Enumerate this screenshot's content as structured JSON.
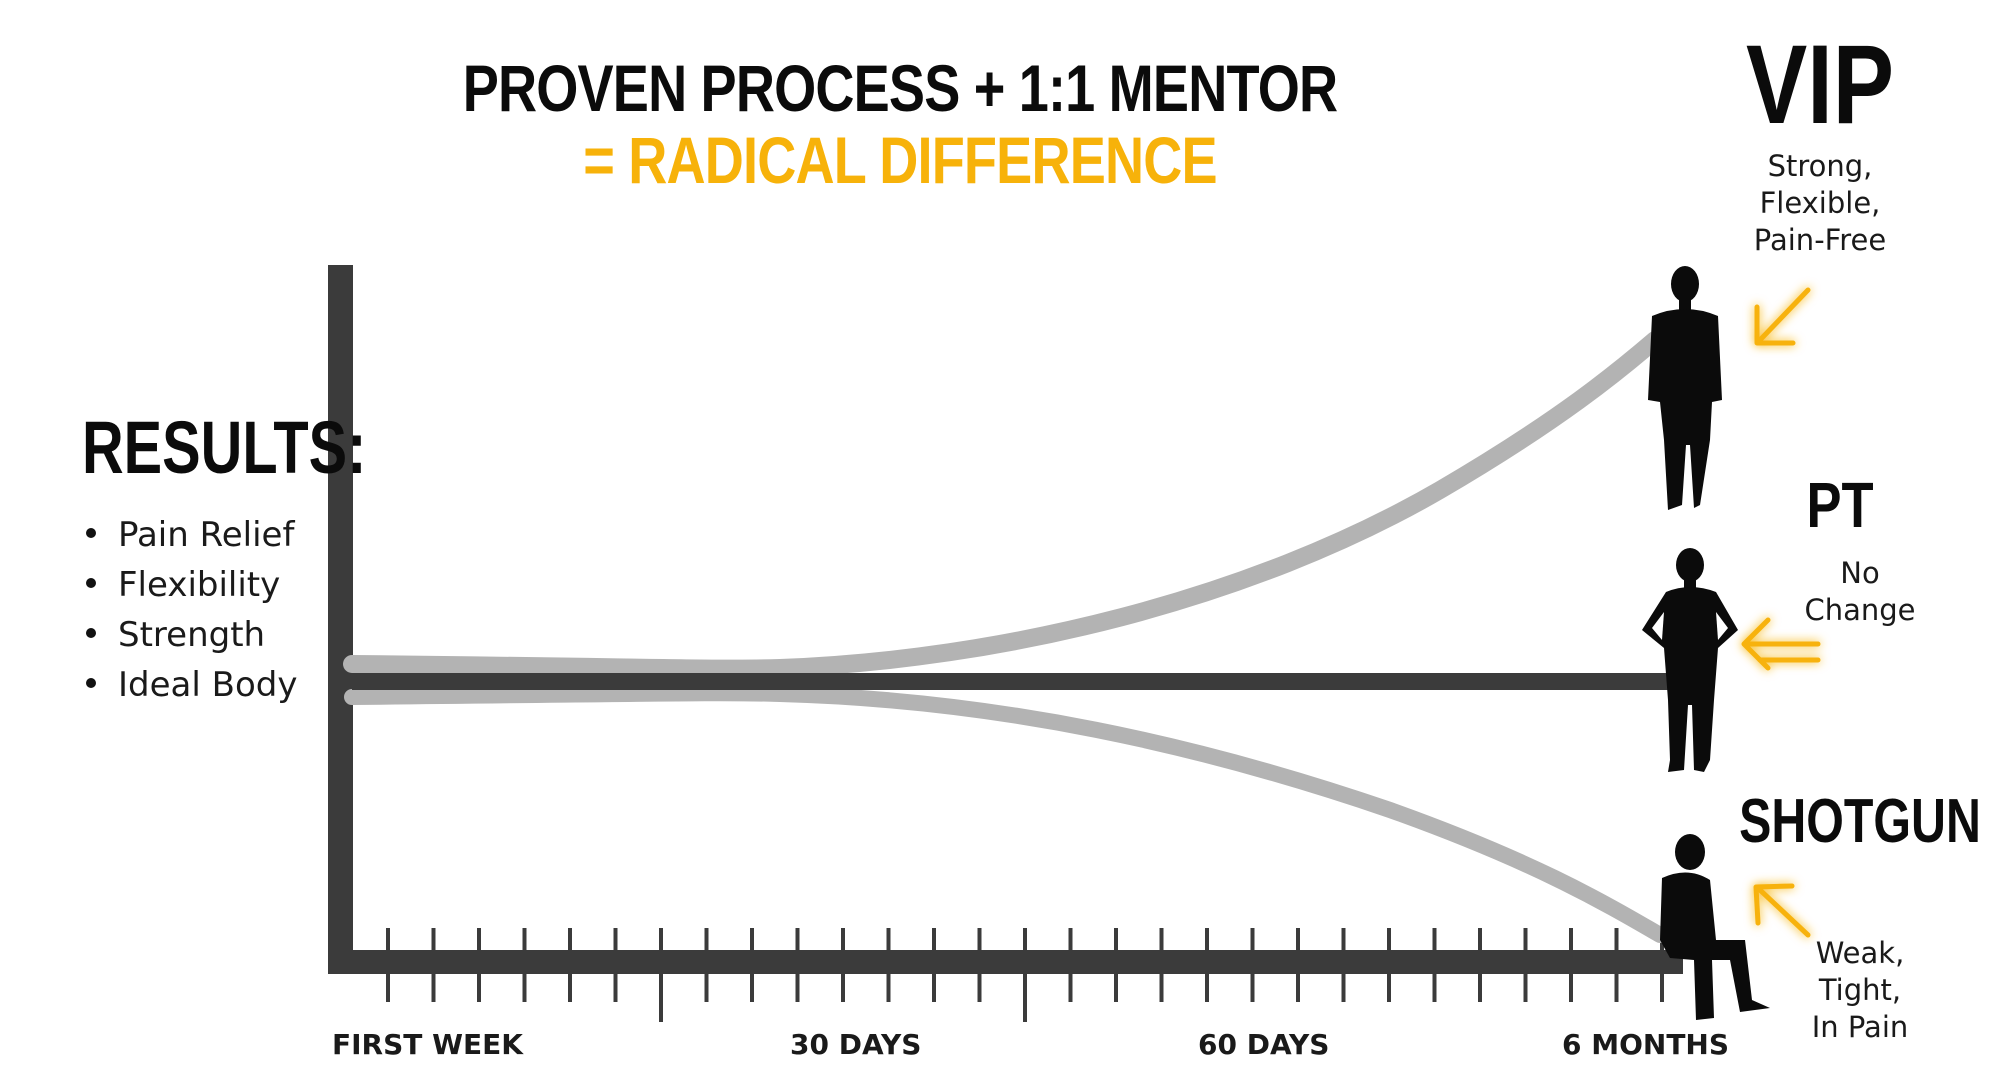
{
  "title": {
    "line1": "PROVEN PROCESS + 1:1 MENTOR",
    "line2": "= RADICAL DIFFERENCE"
  },
  "results": {
    "heading": "RESULTS:",
    "items": [
      "Pain Relief",
      "Flexibility",
      "Strength",
      "Ideal Body"
    ]
  },
  "groups": {
    "vip": {
      "label": "VIP",
      "desc": [
        "Strong,",
        "Flexible,",
        "Pain-Free"
      ]
    },
    "pt": {
      "label": "PT",
      "desc": [
        "No",
        "Change"
      ]
    },
    "shotgun": {
      "label": "SHOTGUN",
      "desc": [
        "Weak,",
        "Tight,",
        "In Pain"
      ]
    }
  },
  "timeline": {
    "ticks": [
      "FIRST WEEK",
      "30 DAYS",
      "60 DAYS",
      "6 MONTHS"
    ]
  },
  "colors": {
    "accent": "#f7b20a",
    "axis": "#3b3b3b",
    "curve": "#b3b3b3",
    "silhouette": "#0b0b0b"
  },
  "icons": [
    "vip-person-standing-icon",
    "pt-person-hands-on-hips-icon",
    "shotgun-person-sitting-icon",
    "glowing-arrow-icon"
  ]
}
